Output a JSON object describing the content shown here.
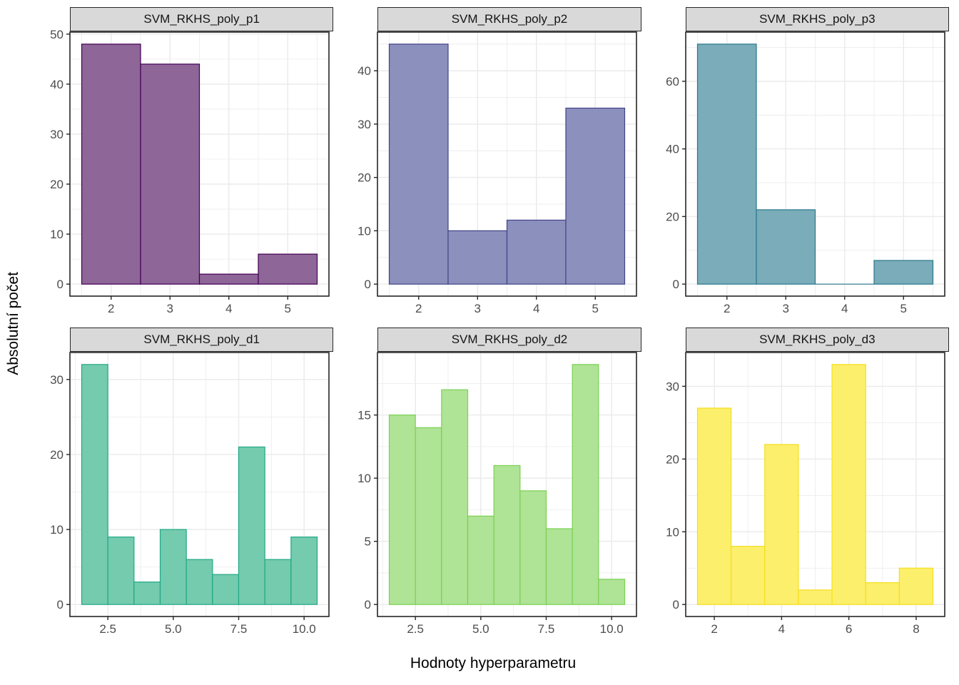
{
  "figure": {
    "xlabel": "Hodnoty hyperparametru",
    "ylabel": "Absolutní počet",
    "strip_background": "#D9D9D9",
    "panel_border_color": "#262626",
    "grid_color": "#EBEBEB",
    "tick_label_color": "#4D4D4D"
  },
  "chart_data": [
    {
      "type": "bar",
      "title": "SVM_RKHS_poly_p1",
      "fill": "#8E6698",
      "stroke": "#440154",
      "bin_centers": [
        2,
        3,
        4,
        5
      ],
      "bin_width": 1,
      "values": [
        48,
        44,
        2,
        6
      ],
      "xlim": [
        1.3,
        5.7
      ],
      "ylim": [
        -2.4,
        50.4
      ],
      "x_ticks": [
        2,
        3,
        4,
        5
      ],
      "x_tick_labels": [
        "2",
        "3",
        "4",
        "5"
      ],
      "x_minor": [
        1.5,
        2.5,
        3.5,
        4.5,
        5.5
      ],
      "y_ticks": [
        0,
        10,
        20,
        30,
        40,
        50
      ],
      "y_tick_labels": [
        "0",
        "10",
        "20",
        "30",
        "40",
        "50"
      ],
      "y_minor": [
        5,
        15,
        25,
        35,
        45
      ]
    },
    {
      "type": "bar",
      "title": "SVM_RKHS_poly_p2",
      "fill": "#8C90BD",
      "stroke": "#414487",
      "bin_centers": [
        2,
        3,
        4,
        5
      ],
      "bin_width": 1,
      "values": [
        45,
        10,
        12,
        33
      ],
      "xlim": [
        1.3,
        5.7
      ],
      "ylim": [
        -2.25,
        47.25
      ],
      "x_ticks": [
        2,
        3,
        4,
        5
      ],
      "x_tick_labels": [
        "2",
        "3",
        "4",
        "5"
      ],
      "x_minor": [
        1.5,
        2.5,
        3.5,
        4.5,
        5.5
      ],
      "y_ticks": [
        0,
        10,
        20,
        30,
        40
      ],
      "y_tick_labels": [
        "0",
        "10",
        "20",
        "30",
        "40"
      ],
      "y_minor": [
        5,
        15,
        25,
        35,
        45
      ]
    },
    {
      "type": "bar",
      "title": "SVM_RKHS_poly_p3",
      "fill": "#7AACB9",
      "stroke": "#2A788E",
      "bin_centers": [
        2,
        3,
        4,
        5
      ],
      "bin_width": 1,
      "values": [
        71,
        22,
        0,
        7
      ],
      "xlim": [
        1.3,
        5.7
      ],
      "ylim": [
        -3.55,
        74.55
      ],
      "x_ticks": [
        2,
        3,
        4,
        5
      ],
      "x_tick_labels": [
        "2",
        "3",
        "4",
        "5"
      ],
      "x_minor": [
        1.5,
        2.5,
        3.5,
        4.5,
        5.5
      ],
      "y_ticks": [
        0,
        20,
        40,
        60
      ],
      "y_tick_labels": [
        "0",
        "20",
        "40",
        "60"
      ],
      "y_minor": [
        10,
        30,
        50,
        70
      ]
    },
    {
      "type": "bar",
      "title": "SVM_RKHS_poly_d1",
      "fill": "#74CBAD",
      "stroke": "#22A884",
      "bin_centers": [
        2,
        3,
        4,
        5,
        6,
        7,
        8,
        9,
        10
      ],
      "bin_width": 1,
      "values": [
        32,
        9,
        3,
        10,
        6,
        4,
        21,
        6,
        9
      ],
      "xlim": [
        1.05,
        10.95
      ],
      "ylim": [
        -1.6,
        33.6
      ],
      "x_ticks": [
        2.5,
        5,
        7.5,
        10
      ],
      "x_tick_labels": [
        "2.5",
        "5.0",
        "7.5",
        "10.0"
      ],
      "x_minor": [
        1.25,
        3.75,
        6.25,
        8.75
      ],
      "y_ticks": [
        0,
        10,
        20,
        30
      ],
      "y_tick_labels": [
        "0",
        "10",
        "20",
        "30"
      ],
      "y_minor": [
        5,
        15,
        25
      ]
    },
    {
      "type": "bar",
      "title": "SVM_RKHS_poly_d2",
      "fill": "#AFE396",
      "stroke": "#7AD151",
      "bin_centers": [
        2,
        3,
        4,
        5,
        6,
        7,
        8,
        9,
        10
      ],
      "bin_width": 1,
      "values": [
        15,
        14,
        17,
        7,
        11,
        9,
        6,
        19,
        2
      ],
      "xlim": [
        1.05,
        10.95
      ],
      "ylim": [
        -0.95,
        19.95
      ],
      "x_ticks": [
        2.5,
        5,
        7.5,
        10
      ],
      "x_tick_labels": [
        "2.5",
        "5.0",
        "7.5",
        "10.0"
      ],
      "x_minor": [
        1.25,
        3.75,
        6.25,
        8.75
      ],
      "y_ticks": [
        0,
        5,
        10,
        15
      ],
      "y_tick_labels": [
        "0",
        "5",
        "10",
        "15"
      ],
      "y_minor": [
        2.5,
        7.5,
        12.5,
        17.5
      ]
    },
    {
      "type": "bar",
      "title": "SVM_RKHS_poly_d3",
      "fill": "#FCEF6C",
      "stroke": "#F6DE1C",
      "bin_centers": [
        2,
        3,
        4,
        5,
        6,
        7,
        8
      ],
      "bin_width": 1,
      "values": [
        27,
        8,
        22,
        2,
        33,
        3,
        5
      ],
      "xlim": [
        1.15,
        8.85
      ],
      "ylim": [
        -1.65,
        34.65
      ],
      "x_ticks": [
        2,
        4,
        6,
        8
      ],
      "x_tick_labels": [
        "2",
        "4",
        "6",
        "8"
      ],
      "x_minor": [
        3,
        5,
        7
      ],
      "y_ticks": [
        0,
        10,
        20,
        30
      ],
      "y_tick_labels": [
        "0",
        "10",
        "20",
        "30"
      ],
      "y_minor": [
        5,
        15,
        25
      ]
    }
  ]
}
